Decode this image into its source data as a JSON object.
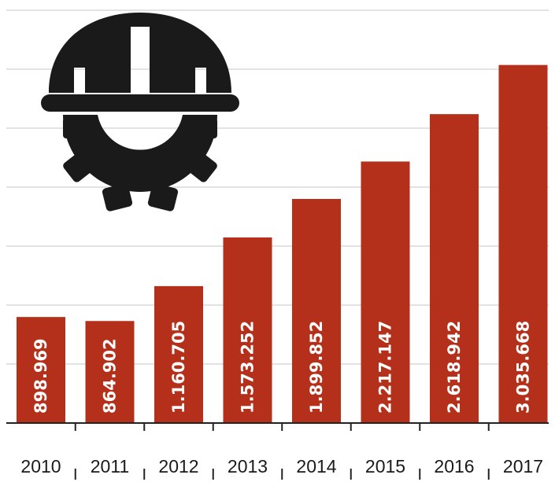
{
  "chart_data": {
    "type": "bar",
    "title": "",
    "xlabel": "",
    "ylabel": "",
    "categories": [
      "2010",
      "2011",
      "2012",
      "2013",
      "2014",
      "2015",
      "2016",
      "2017"
    ],
    "values": [
      898969,
      864902,
      1160705,
      1573252,
      1899852,
      2217147,
      2618942,
      3035668
    ],
    "value_labels": [
      "898.969",
      "864.902",
      "1.160.705",
      "1.573.252",
      "1.899.852",
      "2.217.147",
      "2.618.942",
      "3.035.668"
    ],
    "ylim": [
      0,
      3500000
    ],
    "grid": true,
    "colors": {
      "bar": "#b5301a",
      "grid": "#d9d9d9",
      "axis": "#222222",
      "icon": "#1a1a1a"
    },
    "icon": "hardhat-gear-icon"
  }
}
